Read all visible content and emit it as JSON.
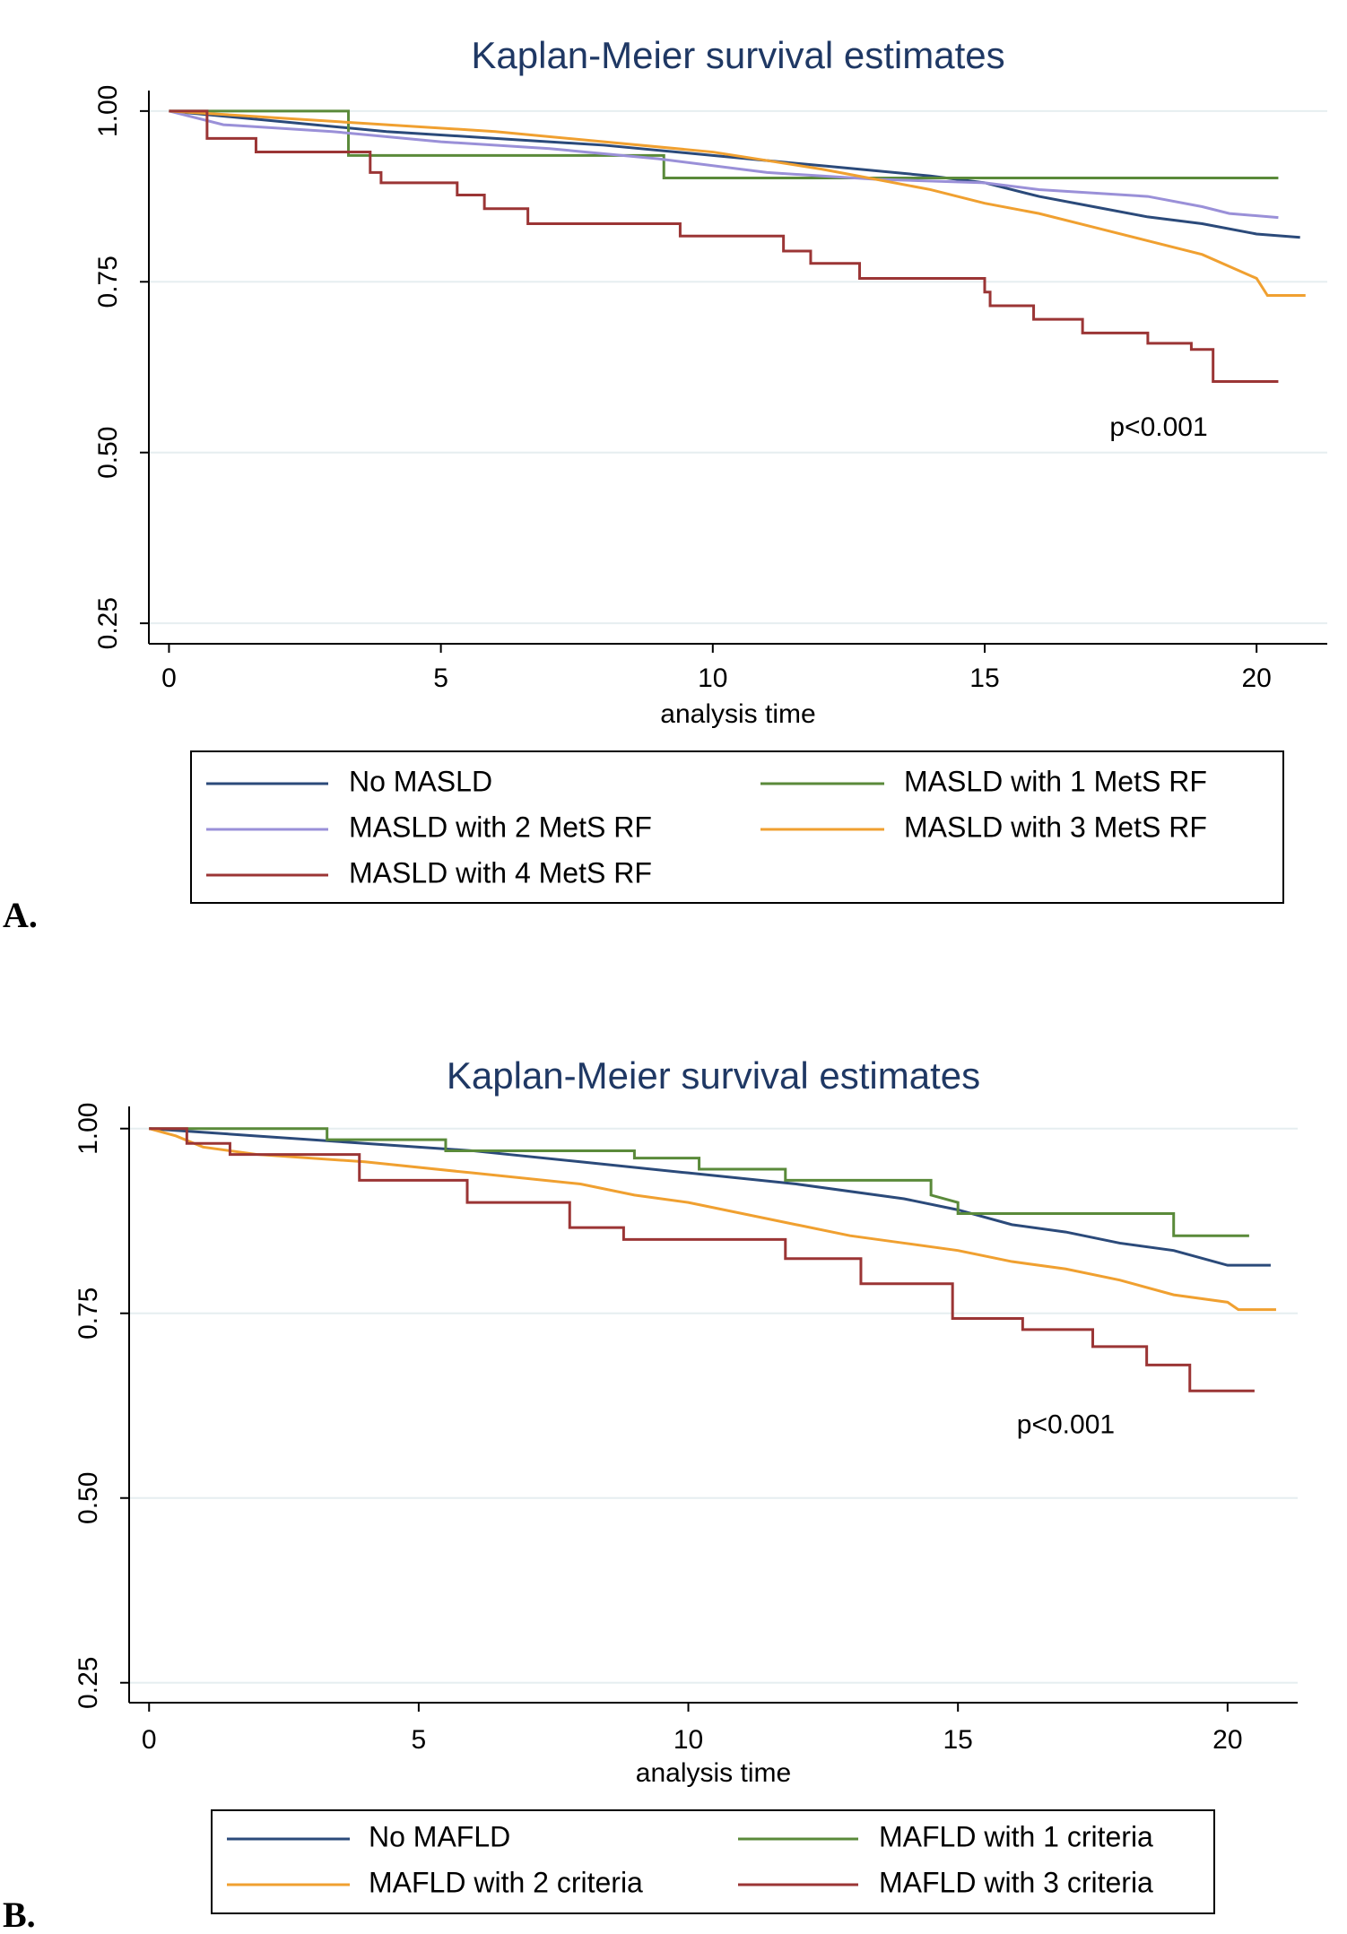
{
  "chart_data": [
    {
      "type": "line",
      "panel_label": "A.",
      "title": "Kaplan-Meier survival estimates",
      "x_label": "analysis time",
      "annotation": {
        "text": "p<0.001",
        "x": 18.2,
        "y": 0.535
      },
      "xlim": [
        -0.37,
        21.3
      ],
      "ylim": [
        0.22,
        1.03
      ],
      "xticks": [
        0,
        5,
        10,
        15,
        20
      ],
      "yticks": [
        0.25,
        {
          "value": 0.5,
          "label": "0.50"
        },
        0.75,
        {
          "value": 1,
          "label": "1.00"
        }
      ],
      "grid": true,
      "series": [
        {
          "name": "No MASLD",
          "color": "#2b4a7a",
          "x": [
            0,
            2,
            4,
            6,
            8,
            10,
            12,
            14,
            15,
            16,
            17,
            18,
            19,
            20,
            20.8
          ],
          "values": [
            1,
            0.985,
            0.97,
            0.96,
            0.95,
            0.935,
            0.92,
            0.905,
            0.895,
            0.875,
            0.86,
            0.845,
            0.835,
            0.82,
            0.815
          ]
        },
        {
          "name": "MASLD with 1 MetS RF",
          "color": "#5a8a3a",
          "x": [
            0,
            3.3,
            3.3,
            9.1,
            9.1,
            20.4
          ],
          "values": [
            1,
            1,
            0.935,
            0.935,
            0.902,
            0.902
          ]
        },
        {
          "name": "MASLD with 2 MetS RF",
          "color": "#9a90d8",
          "x": [
            0,
            1,
            3,
            5,
            7,
            9,
            11,
            13,
            15,
            16,
            18,
            19,
            19.5,
            20.4
          ],
          "values": [
            1,
            0.98,
            0.97,
            0.955,
            0.945,
            0.93,
            0.91,
            0.9,
            0.895,
            0.885,
            0.875,
            0.86,
            0.85,
            0.844
          ]
        },
        {
          "name": "MASLD with 3 MetS RF",
          "color": "#f0a030",
          "x": [
            0,
            2,
            4,
            6,
            8,
            10,
            12,
            13,
            14,
            15,
            16,
            17,
            18,
            19,
            20,
            20.2,
            20.9
          ],
          "values": [
            1,
            0.99,
            0.98,
            0.97,
            0.955,
            0.94,
            0.915,
            0.9,
            0.885,
            0.865,
            0.85,
            0.83,
            0.81,
            0.79,
            0.755,
            0.73,
            0.73
          ]
        },
        {
          "name": "MASLD with 4 MetS RF",
          "color": "#9b3535",
          "x": [
            0,
            0.7,
            0.7,
            1.6,
            1.6,
            3.7,
            3.7,
            3.9,
            3.9,
            5.3,
            5.3,
            5.8,
            5.8,
            6.6,
            6.6,
            9.4,
            9.4,
            11.3,
            11.3,
            11.8,
            11.8,
            12.7,
            12.7,
            15,
            15,
            15.1,
            15.1,
            15.9,
            15.9,
            16.8,
            16.8,
            18,
            18,
            18.8,
            18.8,
            19.2,
            19.2,
            20.4
          ],
          "values": [
            1,
            1,
            0.96,
            0.96,
            0.94,
            0.94,
            0.91,
            0.91,
            0.895,
            0.895,
            0.877,
            0.877,
            0.857,
            0.857,
            0.835,
            0.835,
            0.817,
            0.817,
            0.795,
            0.795,
            0.777,
            0.777,
            0.755,
            0.755,
            0.735,
            0.735,
            0.715,
            0.715,
            0.695,
            0.695,
            0.675,
            0.675,
            0.66,
            0.66,
            0.651,
            0.651,
            0.604,
            0.604
          ]
        }
      ]
    },
    {
      "type": "line",
      "panel_label": "B.",
      "title": "Kaplan-Meier survival estimates",
      "x_label": "analysis time",
      "annotation": {
        "text": "p<0.001",
        "x": 17,
        "y": 0.597
      },
      "xlim": [
        -0.37,
        21.3
      ],
      "ylim": [
        0.223,
        1.03
      ],
      "xticks": [
        0,
        5,
        10,
        15,
        20
      ],
      "yticks": [
        0.25,
        {
          "value": 0.5,
          "label": "0.50"
        },
        0.75,
        {
          "value": 1,
          "label": "1.00"
        }
      ],
      "grid": true,
      "series": [
        {
          "name": "No MAFLD",
          "color": "#2b4a7a",
          "x": [
            0,
            2,
            4,
            6,
            8,
            10,
            12,
            14,
            15,
            16,
            17,
            18,
            19,
            20,
            20.8
          ],
          "values": [
            1,
            0.99,
            0.98,
            0.97,
            0.955,
            0.94,
            0.925,
            0.905,
            0.89,
            0.87,
            0.86,
            0.845,
            0.835,
            0.815,
            0.815
          ]
        },
        {
          "name": "MAFLD with 1 criteria",
          "color": "#5a8a3a",
          "x": [
            0,
            3.3,
            3.3,
            5.5,
            5.5,
            9,
            9,
            10.2,
            10.2,
            11.8,
            11.8,
            14.5,
            14.5,
            15,
            15,
            19,
            19,
            20.4
          ],
          "values": [
            1,
            1,
            0.985,
            0.985,
            0.97,
            0.97,
            0.96,
            0.96,
            0.945,
            0.945,
            0.93,
            0.93,
            0.91,
            0.9,
            0.885,
            0.885,
            0.855,
            0.855
          ]
        },
        {
          "name": "MAFLD with 2 criteria",
          "color": "#f0a030",
          "x": [
            0,
            0.5,
            1,
            2,
            4,
            6,
            8,
            9,
            10,
            11,
            12,
            13,
            14,
            15,
            16,
            17,
            18,
            19,
            20,
            20.2,
            20.9
          ],
          "values": [
            1,
            0.99,
            0.975,
            0.965,
            0.955,
            0.94,
            0.925,
            0.91,
            0.9,
            0.885,
            0.87,
            0.855,
            0.845,
            0.835,
            0.82,
            0.81,
            0.795,
            0.775,
            0.765,
            0.755,
            0.755
          ]
        },
        {
          "name": "MAFLD with 3 criteria",
          "color": "#9b3535",
          "x": [
            0,
            0.7,
            0.7,
            1.5,
            1.5,
            3.9,
            3.9,
            5.9,
            5.9,
            7.8,
            7.8,
            8.8,
            8.8,
            11.8,
            11.8,
            13.2,
            13.2,
            14.9,
            14.9,
            16.2,
            16.2,
            17.5,
            17.5,
            18.5,
            18.5,
            19.3,
            19.3,
            20.5
          ],
          "values": [
            1,
            1,
            0.98,
            0.98,
            0.965,
            0.965,
            0.93,
            0.93,
            0.9,
            0.9,
            0.866,
            0.866,
            0.85,
            0.85,
            0.824,
            0.824,
            0.79,
            0.79,
            0.743,
            0.743,
            0.728,
            0.728,
            0.705,
            0.705,
            0.68,
            0.68,
            0.645,
            0.645
          ]
        }
      ]
    }
  ]
}
